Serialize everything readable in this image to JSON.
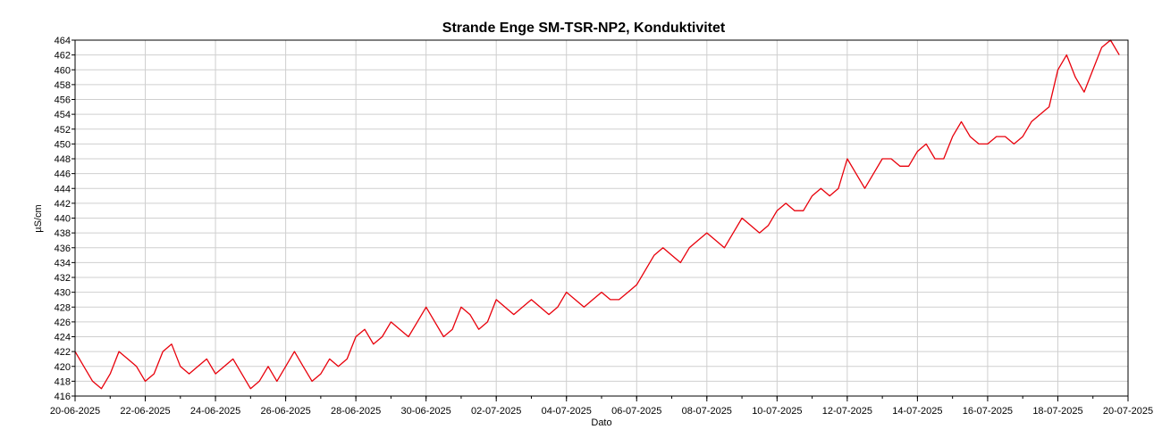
{
  "chart_data": {
    "type": "line",
    "title": "Strande Enge SM-TSR-NP2, Konduktivitet",
    "xlabel": "Dato",
    "ylabel": "µS/cm",
    "x_tick_labels": [
      "20-06-2025",
      "22-06-2025",
      "24-06-2025",
      "26-06-2025",
      "28-06-2025",
      "30-06-2025",
      "02-07-2025",
      "04-07-2025",
      "06-07-2025",
      "08-07-2025",
      "10-07-2025",
      "12-07-2025",
      "14-07-2025",
      "16-07-2025",
      "18-07-2025",
      "20-07-2025"
    ],
    "xlim": [
      "2025-06-20",
      "2025-07-20"
    ],
    "ylim": [
      416,
      464
    ],
    "y_ticks": [
      416,
      418,
      420,
      422,
      424,
      426,
      428,
      430,
      432,
      434,
      436,
      438,
      440,
      442,
      444,
      446,
      448,
      450,
      452,
      454,
      456,
      458,
      460,
      462,
      464
    ],
    "grid": true,
    "series": [
      {
        "color": "#e8000b",
        "points": [
          [
            "2025-06-20T00:00",
            422
          ],
          [
            "2025-06-20T06:00",
            420
          ],
          [
            "2025-06-20T12:00",
            418
          ],
          [
            "2025-06-20T18:00",
            417
          ],
          [
            "2025-06-21T00:00",
            419
          ],
          [
            "2025-06-21T06:00",
            422
          ],
          [
            "2025-06-21T12:00",
            421
          ],
          [
            "2025-06-21T18:00",
            420
          ],
          [
            "2025-06-22T00:00",
            418
          ],
          [
            "2025-06-22T06:00",
            419
          ],
          [
            "2025-06-22T12:00",
            422
          ],
          [
            "2025-06-22T18:00",
            423
          ],
          [
            "2025-06-23T00:00",
            420
          ],
          [
            "2025-06-23T06:00",
            419
          ],
          [
            "2025-06-23T12:00",
            420
          ],
          [
            "2025-06-23T18:00",
            421
          ],
          [
            "2025-06-24T00:00",
            419
          ],
          [
            "2025-06-24T06:00",
            420
          ],
          [
            "2025-06-24T12:00",
            421
          ],
          [
            "2025-06-24T18:00",
            419
          ],
          [
            "2025-06-25T00:00",
            417
          ],
          [
            "2025-06-25T06:00",
            418
          ],
          [
            "2025-06-25T12:00",
            420
          ],
          [
            "2025-06-25T18:00",
            418
          ],
          [
            "2025-06-26T00:00",
            420
          ],
          [
            "2025-06-26T06:00",
            422
          ],
          [
            "2025-06-26T12:00",
            420
          ],
          [
            "2025-06-26T18:00",
            418
          ],
          [
            "2025-06-27T00:00",
            419
          ],
          [
            "2025-06-27T06:00",
            421
          ],
          [
            "2025-06-27T12:00",
            420
          ],
          [
            "2025-06-27T18:00",
            421
          ],
          [
            "2025-06-28T00:00",
            424
          ],
          [
            "2025-06-28T06:00",
            425
          ],
          [
            "2025-06-28T12:00",
            423
          ],
          [
            "2025-06-28T18:00",
            424
          ],
          [
            "2025-06-29T00:00",
            426
          ],
          [
            "2025-06-29T06:00",
            425
          ],
          [
            "2025-06-29T12:00",
            424
          ],
          [
            "2025-06-29T18:00",
            426
          ],
          [
            "2025-06-30T00:00",
            428
          ],
          [
            "2025-06-30T06:00",
            426
          ],
          [
            "2025-06-30T12:00",
            424
          ],
          [
            "2025-06-30T18:00",
            425
          ],
          [
            "2025-07-01T00:00",
            428
          ],
          [
            "2025-07-01T06:00",
            427
          ],
          [
            "2025-07-01T12:00",
            425
          ],
          [
            "2025-07-01T18:00",
            426
          ],
          [
            "2025-07-02T00:00",
            429
          ],
          [
            "2025-07-02T06:00",
            428
          ],
          [
            "2025-07-02T12:00",
            427
          ],
          [
            "2025-07-02T18:00",
            428
          ],
          [
            "2025-07-03T00:00",
            429
          ],
          [
            "2025-07-03T06:00",
            428
          ],
          [
            "2025-07-03T12:00",
            427
          ],
          [
            "2025-07-03T18:00",
            428
          ],
          [
            "2025-07-04T00:00",
            430
          ],
          [
            "2025-07-04T06:00",
            429
          ],
          [
            "2025-07-04T12:00",
            428
          ],
          [
            "2025-07-04T18:00",
            429
          ],
          [
            "2025-07-05T00:00",
            430
          ],
          [
            "2025-07-05T06:00",
            429
          ],
          [
            "2025-07-05T12:00",
            429
          ],
          [
            "2025-07-05T18:00",
            430
          ],
          [
            "2025-07-06T00:00",
            431
          ],
          [
            "2025-07-06T06:00",
            433
          ],
          [
            "2025-07-06T12:00",
            435
          ],
          [
            "2025-07-06T18:00",
            436
          ],
          [
            "2025-07-07T00:00",
            435
          ],
          [
            "2025-07-07T06:00",
            434
          ],
          [
            "2025-07-07T12:00",
            436
          ],
          [
            "2025-07-07T18:00",
            437
          ],
          [
            "2025-07-08T00:00",
            438
          ],
          [
            "2025-07-08T06:00",
            437
          ],
          [
            "2025-07-08T12:00",
            436
          ],
          [
            "2025-07-08T18:00",
            438
          ],
          [
            "2025-07-09T00:00",
            440
          ],
          [
            "2025-07-09T06:00",
            439
          ],
          [
            "2025-07-09T12:00",
            438
          ],
          [
            "2025-07-09T18:00",
            439
          ],
          [
            "2025-07-10T00:00",
            441
          ],
          [
            "2025-07-10T06:00",
            442
          ],
          [
            "2025-07-10T12:00",
            441
          ],
          [
            "2025-07-10T18:00",
            441
          ],
          [
            "2025-07-11T00:00",
            443
          ],
          [
            "2025-07-11T06:00",
            444
          ],
          [
            "2025-07-11T12:00",
            443
          ],
          [
            "2025-07-11T18:00",
            444
          ],
          [
            "2025-07-12T00:00",
            448
          ],
          [
            "2025-07-12T06:00",
            446
          ],
          [
            "2025-07-12T12:00",
            444
          ],
          [
            "2025-07-12T18:00",
            446
          ],
          [
            "2025-07-13T00:00",
            448
          ],
          [
            "2025-07-13T06:00",
            448
          ],
          [
            "2025-07-13T12:00",
            447
          ],
          [
            "2025-07-13T18:00",
            447
          ],
          [
            "2025-07-14T00:00",
            449
          ],
          [
            "2025-07-14T06:00",
            450
          ],
          [
            "2025-07-14T12:00",
            448
          ],
          [
            "2025-07-14T18:00",
            448
          ],
          [
            "2025-07-15T00:00",
            451
          ],
          [
            "2025-07-15T06:00",
            453
          ],
          [
            "2025-07-15T12:00",
            451
          ],
          [
            "2025-07-15T18:00",
            450
          ],
          [
            "2025-07-16T00:00",
            450
          ],
          [
            "2025-07-16T06:00",
            451
          ],
          [
            "2025-07-16T12:00",
            451
          ],
          [
            "2025-07-16T18:00",
            450
          ],
          [
            "2025-07-17T00:00",
            451
          ],
          [
            "2025-07-17T06:00",
            453
          ],
          [
            "2025-07-17T12:00",
            454
          ],
          [
            "2025-07-17T18:00",
            455
          ],
          [
            "2025-07-18T00:00",
            460
          ],
          [
            "2025-07-18T06:00",
            462
          ],
          [
            "2025-07-18T12:00",
            459
          ],
          [
            "2025-07-18T18:00",
            457
          ],
          [
            "2025-07-19T00:00",
            460
          ],
          [
            "2025-07-19T06:00",
            463
          ],
          [
            "2025-07-19T12:00",
            464
          ],
          [
            "2025-07-19T18:00",
            462
          ]
        ]
      }
    ]
  }
}
